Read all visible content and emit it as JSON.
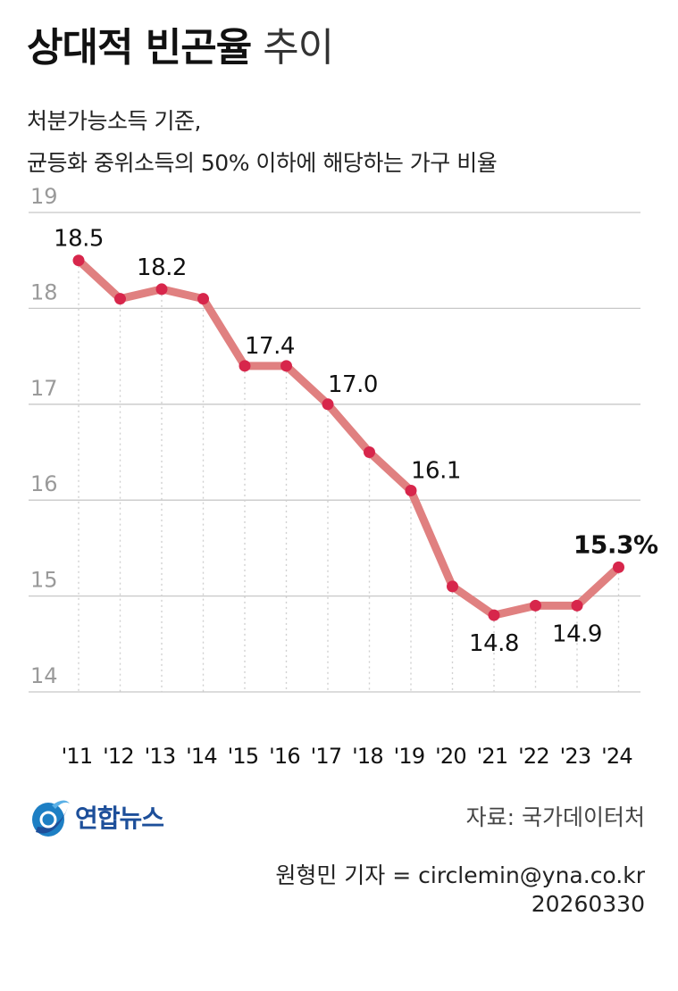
{
  "header": {
    "title_bold": "상대적 빈곤율",
    "title_light": "추이",
    "subtitle_lines": [
      "처분가능소득 기준,",
      "균등화 중위소득의 50% 이하에 해당하는 가구 비율"
    ]
  },
  "chart_data": {
    "type": "line",
    "title": "상대적 빈곤율 추이",
    "categories": [
      "'11",
      "'12",
      "'13",
      "'14",
      "'15",
      "'16",
      "'17",
      "'18",
      "'19",
      "'20",
      "'21",
      "'22",
      "'23",
      "'24"
    ],
    "values": [
      18.5,
      18.1,
      18.2,
      18.1,
      17.4,
      17.4,
      17.0,
      16.5,
      16.1,
      15.1,
      14.8,
      14.9,
      14.9,
      15.3
    ],
    "labeled_points": [
      {
        "index": 0,
        "text": "18.5"
      },
      {
        "index": 2,
        "text": "18.2"
      },
      {
        "index": 4,
        "text": "17.4"
      },
      {
        "index": 6,
        "text": "17.0"
      },
      {
        "index": 8,
        "text": "16.1"
      },
      {
        "index": 10,
        "text": "14.8"
      },
      {
        "index": 12,
        "text": "14.9"
      },
      {
        "index": 13,
        "text": "15.3%"
      }
    ],
    "y_ticks": [
      "14",
      "15",
      "16",
      "17",
      "18",
      "19"
    ],
    "ylim": [
      14,
      19
    ],
    "grid": true,
    "colors": {
      "line": "#e08080",
      "point": "#d7264b",
      "grid": "#c8c8c8",
      "tick": "#9a9a9a"
    }
  },
  "footer": {
    "logo_text": "연합뉴스",
    "source": "자료: 국가데이터처",
    "reporter": "원형민 기자 = circlemin@yna.co.kr",
    "date": "20260330"
  }
}
